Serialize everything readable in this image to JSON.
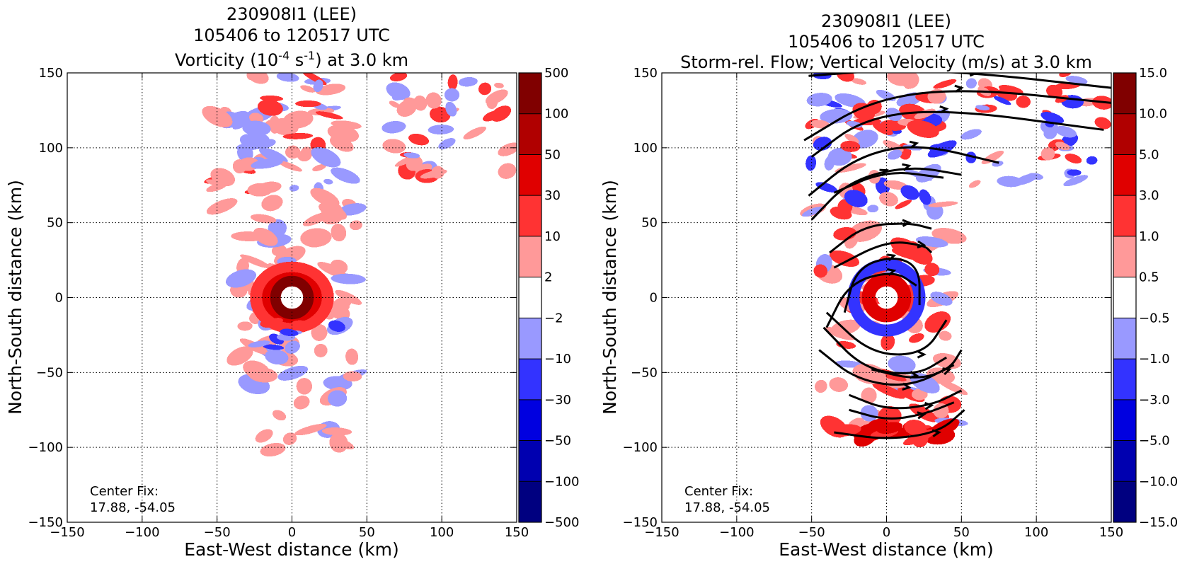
{
  "chart_data": [
    {
      "type": "heatmap",
      "title_lines": [
        "230908I1 (LEE)",
        "105406 to 120517 UTC"
      ],
      "title_line3": {
        "pre": "Vorticity (10",
        "sup1": "-4",
        "mid": " s",
        "sup2": "-1",
        "post": ") at 3.0 km"
      },
      "xlabel": "East-West distance (km)",
      "ylabel": "North-South distance (km)",
      "xlim": [
        -150,
        150
      ],
      "ylim": [
        -150,
        150
      ],
      "xticks": [
        "−150",
        "−100",
        "−50",
        "0",
        "50",
        "100",
        "150"
      ],
      "yticks": [
        "150",
        "100",
        "50",
        "0",
        "−50",
        "−100",
        "−150"
      ],
      "grid": true,
      "colorbar_levels": [
        "500",
        "100",
        "50",
        "30",
        "10",
        "2",
        "−2",
        "−10",
        "−30",
        "−50",
        "−100",
        "−500"
      ],
      "colorbar_colors": [
        "#800000",
        "#b00000",
        "#e00000",
        "#ff3333",
        "#ff9999",
        "#ffffff",
        "#9999ff",
        "#3333ff",
        "#0000e0",
        "#0000b0",
        "#000080"
      ],
      "annotation_label": "Center Fix:",
      "annotation_value": "17.88, -54.05"
    },
    {
      "type": "heatmap",
      "title_lines": [
        "230908I1 (LEE)",
        "105406 to 120517 UTC",
        "Storm-rel. Flow; Vertical Velocity (m/s) at 3.0 km"
      ],
      "xlabel": "East-West distance (km)",
      "ylabel": "North-South distance (km)",
      "xlim": [
        -150,
        150
      ],
      "ylim": [
        -150,
        150
      ],
      "xticks": [
        "−150",
        "−100",
        "−50",
        "0",
        "50",
        "100",
        "150"
      ],
      "yticks": [
        "150",
        "100",
        "50",
        "0",
        "−50",
        "−100",
        "−150"
      ],
      "grid": true,
      "colorbar_levels": [
        "15.0",
        "10.0",
        "5.0",
        "3.0",
        "1.0",
        "0.5",
        "−0.5",
        "−1.0",
        "−3.0",
        "−5.0",
        "−10.0",
        "−15.0"
      ],
      "colorbar_colors": [
        "#800000",
        "#b00000",
        "#e00000",
        "#ff3333",
        "#ff9999",
        "#ffffff",
        "#9999ff",
        "#3333ff",
        "#0000e0",
        "#0000b0",
        "#000080"
      ],
      "streamline_color": "#000000",
      "annotation_label": "Center Fix:",
      "annotation_value": "17.88, -54.05"
    }
  ]
}
